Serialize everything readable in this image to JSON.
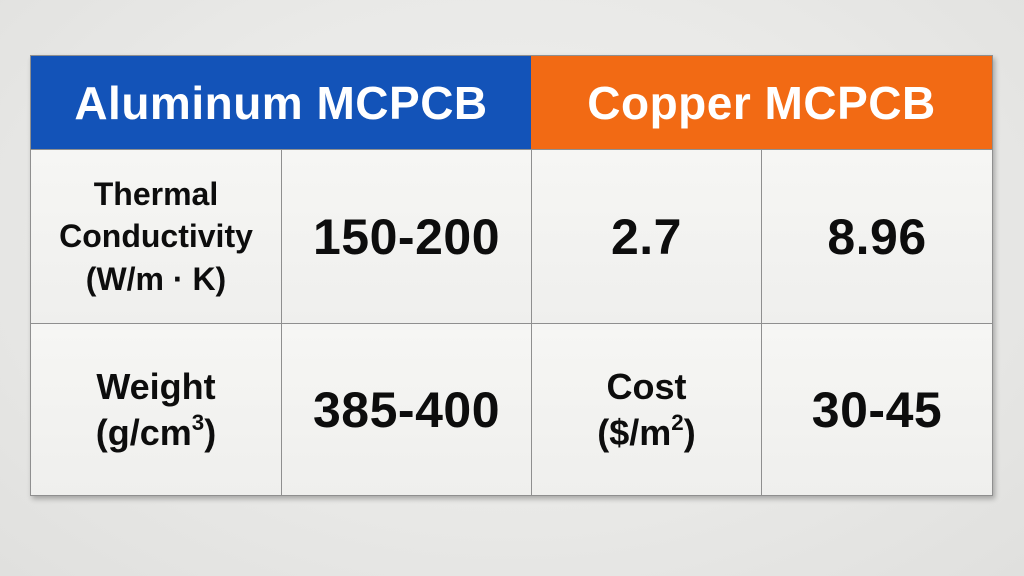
{
  "colors": {
    "aluminum_header_bg": "#1353b8",
    "copper_header_bg": "#f26a14",
    "header_text": "#ffffff",
    "cell_text": "#0d0d0d",
    "grid_line": "#8f8f8f"
  },
  "table": {
    "header": {
      "aluminum": "Aluminum MCPCB",
      "copper": "Copper MCPCB"
    },
    "row1": {
      "label": {
        "line1": "Thermal",
        "line2": "Conductivity",
        "line3": "(W/m · K)"
      },
      "aluminum_value": "150-200",
      "copper_col1_value": "2.7",
      "copper_col2_value": "8.96"
    },
    "row2": {
      "weight_label": {
        "line1": "Weight",
        "unit_pre": "(g/cm",
        "unit_sup": "3",
        "unit_post": ")"
      },
      "weight_value": "385-400",
      "cost_label": {
        "line1": "Cost",
        "unit_pre": "($/m",
        "unit_sup": "2",
        "unit_post": ")"
      },
      "cost_value": "30-45"
    }
  },
  "chart_data": {
    "type": "table",
    "header_row": [
      "Aluminum MCPCB",
      "Copper MCPCB"
    ],
    "rows": [
      [
        "Thermal Conductivity (W/m·K)",
        "150-200",
        "2.7",
        "8.96"
      ],
      [
        "Weight (g/cm³)",
        "385-400",
        "Cost ($/m²)",
        "30-45"
      ]
    ]
  }
}
